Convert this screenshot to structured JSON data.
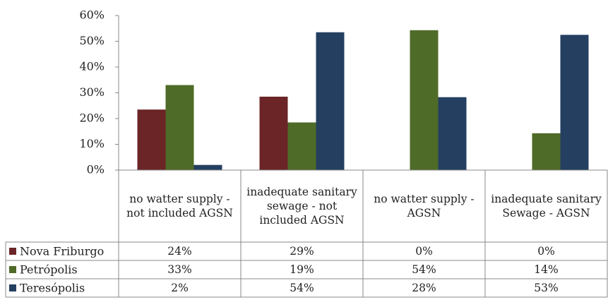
{
  "chart_data": {
    "type": "bar",
    "categories": [
      "no watter supply - not included AGSN",
      "inadequate sanitary sewage - not included AGSN",
      "no watter supply - AGSN",
      "inadequate sanitary Sewage - AGSN"
    ],
    "series": [
      {
        "name": "Nova Friburgo",
        "color": "#6b2527",
        "values": [
          23.5,
          28.5,
          0,
          0
        ],
        "value_labels": [
          "24%",
          "29%",
          "0%",
          "0%"
        ]
      },
      {
        "name": "Petrópolis",
        "color": "#4f6b28",
        "values": [
          33,
          18.5,
          54.3,
          14.3
        ],
        "value_labels": [
          "33%",
          "19%",
          "54%",
          "14%"
        ]
      },
      {
        "name": "Teresópolis",
        "color": "#243f60",
        "values": [
          2,
          53.5,
          28.3,
          52.5
        ],
        "value_labels": [
          "2%",
          "54%",
          "28%",
          "53%"
        ]
      }
    ],
    "ylim": [
      0,
      60
    ],
    "yticks": [
      {
        "value": 0,
        "label": "0%"
      },
      {
        "value": 10,
        "label": "10%"
      },
      {
        "value": 20,
        "label": "20%"
      },
      {
        "value": 30,
        "label": "30%"
      },
      {
        "value": 40,
        "label": "40%"
      },
      {
        "value": 50,
        "label": "50%"
      },
      {
        "value": 60,
        "label": "60%"
      }
    ],
    "grid": false
  }
}
